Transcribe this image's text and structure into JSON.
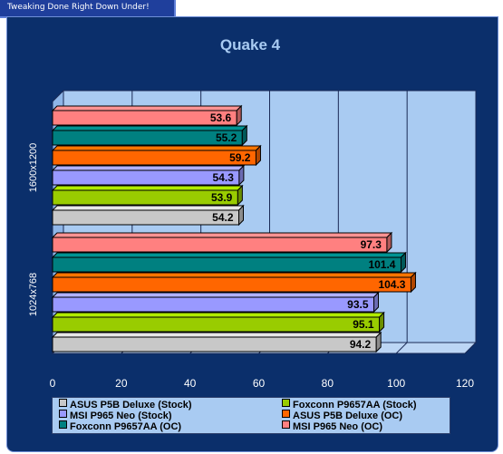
{
  "banner": "Tweaking Done Right Down Under!",
  "chart_data": {
    "type": "bar",
    "orientation": "horizontal",
    "title": "Quake 4",
    "categories": [
      "1600x1200",
      "1024x768"
    ],
    "series": [
      {
        "name": "ASUS P5B Deluxe (Stock)",
        "color": "#c8c8c8",
        "values": [
          54.2,
          94.2
        ]
      },
      {
        "name": "Foxconn P9657AA (Stock)",
        "color": "#99cc00",
        "values": [
          53.9,
          95.1
        ]
      },
      {
        "name": "MSI P965 Neo (Stock)",
        "color": "#9999ff",
        "values": [
          54.3,
          93.5
        ]
      },
      {
        "name": "ASUS P5B Deluxe (OC)",
        "color": "#ff6600",
        "values": [
          59.2,
          104.3
        ]
      },
      {
        "name": "Foxconn P9657AA (OC)",
        "color": "#008080",
        "values": [
          55.2,
          101.4
        ]
      },
      {
        "name": "MSI P965 Neo (OC)",
        "color": "#ff8080",
        "values": [
          53.6,
          97.3
        ]
      }
    ],
    "value_labels": [
      [
        "54.2",
        "53.9",
        "54.3",
        "59.2",
        "55.2",
        "53.6"
      ],
      [
        "94.2",
        "95.1",
        "93.5",
        "104.3",
        "101.4",
        "97.3"
      ]
    ],
    "xlim": [
      0,
      120
    ],
    "xticks": [
      "0",
      "20",
      "40",
      "60",
      "80",
      "100",
      "120"
    ],
    "grid": true,
    "legend_position": "bottom"
  },
  "colors": {
    "frame": "#0b2f6b",
    "plot_area": "#a9cbf2",
    "title_text": "#a9cbf2",
    "axis_text": "#ffffff"
  }
}
